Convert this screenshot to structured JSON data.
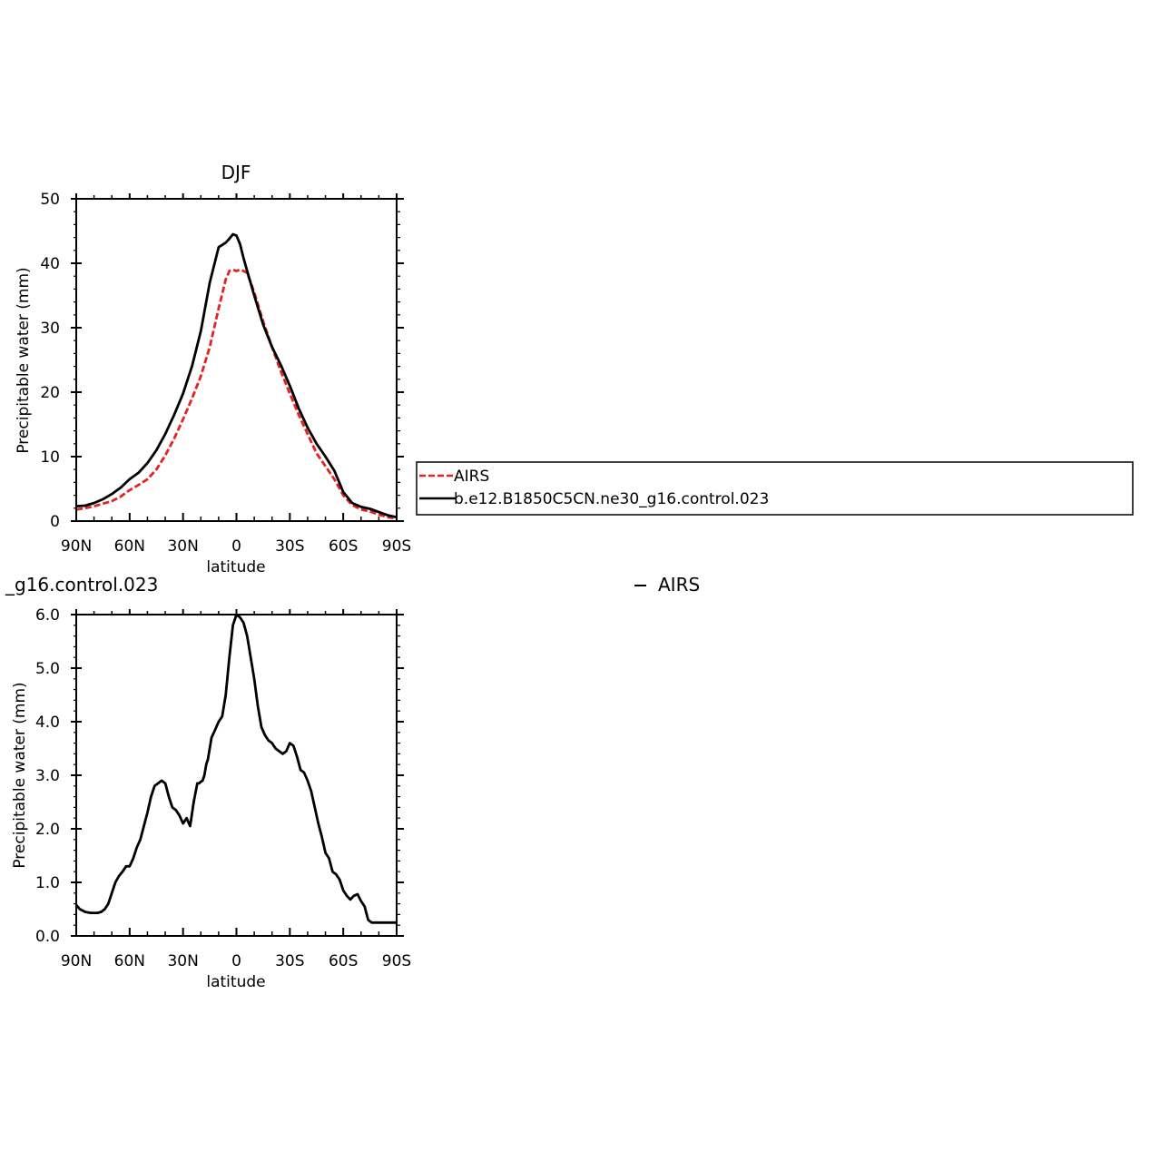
{
  "chart_data": [
    {
      "type": "line",
      "title": "DJF",
      "xlabel": "latitude",
      "ylabel": "Precipitable water (mm)",
      "xlim": [
        90,
        -90
      ],
      "ylim": [
        0,
        50
      ],
      "xticks": [
        90,
        60,
        30,
        0,
        -30,
        -60,
        -90
      ],
      "xtick_labels": [
        "90N",
        "60N",
        "30N",
        "0",
        "30S",
        "60S",
        "90S"
      ],
      "yticks": [
        0,
        10,
        20,
        30,
        40,
        50
      ],
      "ytick_labels": [
        "0",
        "10",
        "20",
        "30",
        "40",
        "50"
      ],
      "legend": {
        "placement": "right",
        "entries": [
          "AIRS",
          "b.e12.B1850C5CN.ne30_g16.control.023"
        ]
      },
      "series": [
        {
          "name": "AIRS",
          "color": "#e8201f",
          "dash": "dashed",
          "x": [
            90,
            85,
            80,
            75,
            70,
            65,
            60,
            55,
            50,
            45,
            40,
            35,
            30,
            25,
            20,
            15,
            10,
            6,
            4,
            2,
            0,
            -2,
            -4,
            -6,
            -10,
            -15,
            -20,
            -25,
            -30,
            -35,
            -40,
            -45,
            -50,
            -55,
            -60,
            -65,
            -70,
            -75,
            -80,
            -85,
            -90
          ],
          "y": [
            1.8,
            2.0,
            2.3,
            2.7,
            3.1,
            3.8,
            4.8,
            5.6,
            6.5,
            8.0,
            10.2,
            12.8,
            15.8,
            19.0,
            22.5,
            27.0,
            33.0,
            37.5,
            38.8,
            39.0,
            38.8,
            39.0,
            38.8,
            38.5,
            35.5,
            31.0,
            27.0,
            23.2,
            19.8,
            16.5,
            13.5,
            10.5,
            8.5,
            6.5,
            4.0,
            2.5,
            1.8,
            1.5,
            1.0,
            0.6,
            0.4
          ]
        },
        {
          "name": "b.e12.B1850C5CN.ne30_g16.control.023",
          "color": "#000000",
          "dash": "solid",
          "x": [
            90,
            85,
            80,
            75,
            70,
            65,
            60,
            55,
            50,
            45,
            40,
            35,
            30,
            25,
            20,
            15,
            10,
            6,
            4,
            2,
            0,
            -2,
            -4,
            -6,
            -10,
            -15,
            -20,
            -25,
            -30,
            -35,
            -40,
            -45,
            -50,
            -55,
            -60,
            -65,
            -70,
            -75,
            -80,
            -85,
            -90
          ],
          "y": [
            2.3,
            2.4,
            2.8,
            3.4,
            4.2,
            5.2,
            6.5,
            7.5,
            9.0,
            11.0,
            13.5,
            16.5,
            19.8,
            24.0,
            29.5,
            37.0,
            42.5,
            43.2,
            43.8,
            44.5,
            44.3,
            43.0,
            40.8,
            38.8,
            35.0,
            30.5,
            27.0,
            24.2,
            21.0,
            17.5,
            14.5,
            12.0,
            10.0,
            7.8,
            4.5,
            2.8,
            2.2,
            1.9,
            1.4,
            0.9,
            0.6
          ]
        }
      ]
    },
    {
      "type": "line",
      "title_left": "_g16.control.023",
      "title_right": "AIRS",
      "xlabel": "latitude",
      "ylabel": "Precipitable water (mm)",
      "xlim": [
        90,
        -90
      ],
      "ylim": [
        0,
        6
      ],
      "xticks": [
        90,
        60,
        30,
        0,
        -30,
        -60,
        -90
      ],
      "xtick_labels": [
        "90N",
        "60N",
        "30N",
        "0",
        "30S",
        "60S",
        "90S"
      ],
      "yticks": [
        0,
        1,
        2,
        3,
        4,
        5,
        6
      ],
      "ytick_labels": [
        "0.0",
        "1.0",
        "2.0",
        "3.0",
        "4.0",
        "5.0",
        "6.0"
      ],
      "series": [
        {
          "color": "#000000",
          "dash": "solid",
          "x": [
            90,
            88,
            85,
            82,
            80,
            78,
            76,
            74,
            72,
            70,
            68,
            66,
            64,
            62,
            60,
            58,
            56,
            54,
            52,
            50,
            48,
            46,
            44,
            42,
            40,
            38,
            36,
            34,
            32,
            30,
            28,
            26,
            24,
            22,
            21,
            20,
            19,
            18,
            17,
            16,
            14,
            12,
            10,
            8,
            6,
            4,
            2,
            0,
            -2,
            -4,
            -6,
            -8,
            -10,
            -12,
            -14,
            -16,
            -18,
            -20,
            -22,
            -24,
            -26,
            -28,
            -30,
            -32,
            -34,
            -36,
            -38,
            -40,
            -42,
            -44,
            -46,
            -48,
            -50,
            -52,
            -54,
            -56,
            -58,
            -60,
            -62,
            -64,
            -66,
            -68,
            -70,
            -72,
            -74,
            -76,
            -78,
            -80,
            -82,
            -84,
            -86,
            -88,
            -90
          ],
          "y": [
            0.58,
            0.5,
            0.45,
            0.43,
            0.43,
            0.43,
            0.45,
            0.5,
            0.6,
            0.8,
            1.0,
            1.12,
            1.2,
            1.3,
            1.3,
            1.45,
            1.65,
            1.8,
            2.05,
            2.3,
            2.6,
            2.8,
            2.85,
            2.9,
            2.85,
            2.6,
            2.4,
            2.35,
            2.25,
            2.1,
            2.2,
            2.05,
            2.5,
            2.85,
            2.85,
            2.88,
            2.9,
            3.0,
            3.2,
            3.3,
            3.7,
            3.85,
            4.0,
            4.1,
            4.5,
            5.2,
            5.8,
            6.0,
            5.95,
            5.85,
            5.6,
            5.2,
            4.8,
            4.3,
            3.9,
            3.75,
            3.65,
            3.6,
            3.5,
            3.45,
            3.4,
            3.45,
            3.6,
            3.55,
            3.35,
            3.1,
            3.05,
            2.9,
            2.7,
            2.4,
            2.1,
            1.85,
            1.55,
            1.45,
            1.2,
            1.15,
            1.05,
            0.85,
            0.75,
            0.68,
            0.75,
            0.78,
            0.65,
            0.55,
            0.3,
            0.25,
            0.25,
            0.25,
            0.25,
            0.25,
            0.25,
            0.25,
            0.25
          ]
        }
      ]
    }
  ]
}
